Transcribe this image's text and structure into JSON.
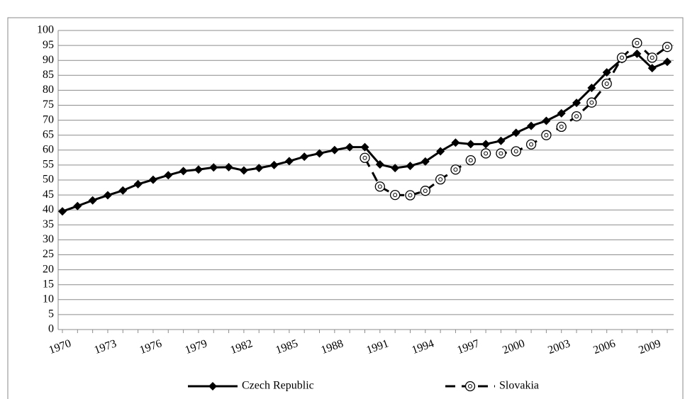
{
  "chart_data": {
    "type": "line",
    "categories": [
      "1970",
      null,
      null,
      "1973",
      null,
      null,
      "1976",
      null,
      null,
      "1979",
      null,
      null,
      "1982",
      null,
      null,
      "1985",
      null,
      null,
      "1988",
      null,
      null,
      "1991",
      null,
      null,
      "1994",
      null,
      null,
      "1997",
      null,
      null,
      "2000",
      null,
      null,
      "2003",
      null,
      null,
      "2006",
      null,
      null,
      "2009",
      null
    ],
    "series": [
      {
        "name": "Czech Republic",
        "color": "#000000",
        "marker": "diamond",
        "dash": false,
        "values": [
          39.5,
          41.3,
          43.2,
          44.9,
          46.5,
          48.6,
          50.1,
          51.6,
          53,
          53.5,
          54.2,
          54.3,
          53.2,
          54,
          55,
          56.3,
          57.8,
          58.9,
          60,
          61,
          61,
          55.2,
          54,
          54.7,
          56.2,
          59.6,
          62.5,
          62,
          62,
          63.1,
          65.8,
          68.1,
          69.8,
          72.3,
          75.8,
          80.8,
          86,
          90.4,
          92.2,
          87.4,
          89.5
        ]
      },
      {
        "name": "Slovakia",
        "color": "#000000",
        "marker": "circle",
        "dash": true,
        "values": [
          null,
          null,
          null,
          null,
          null,
          null,
          null,
          null,
          null,
          null,
          null,
          null,
          null,
          null,
          null,
          null,
          null,
          null,
          null,
          null,
          57.4,
          47.8,
          45,
          44.9,
          46.4,
          50.2,
          53.5,
          56.6,
          58.9,
          58.9,
          59.6,
          61.9,
          65,
          67.8,
          71.3,
          75.9,
          82.2,
          90.9,
          95.8,
          90.9,
          94.5
        ]
      }
    ],
    "ylim": [
      0,
      100
    ],
    "yticks": [
      0,
      5,
      10,
      15,
      20,
      25,
      30,
      35,
      40,
      45,
      50,
      55,
      60,
      65,
      70,
      75,
      80,
      85,
      90,
      95,
      100
    ],
    "grid": true,
    "legend": "bottom"
  }
}
